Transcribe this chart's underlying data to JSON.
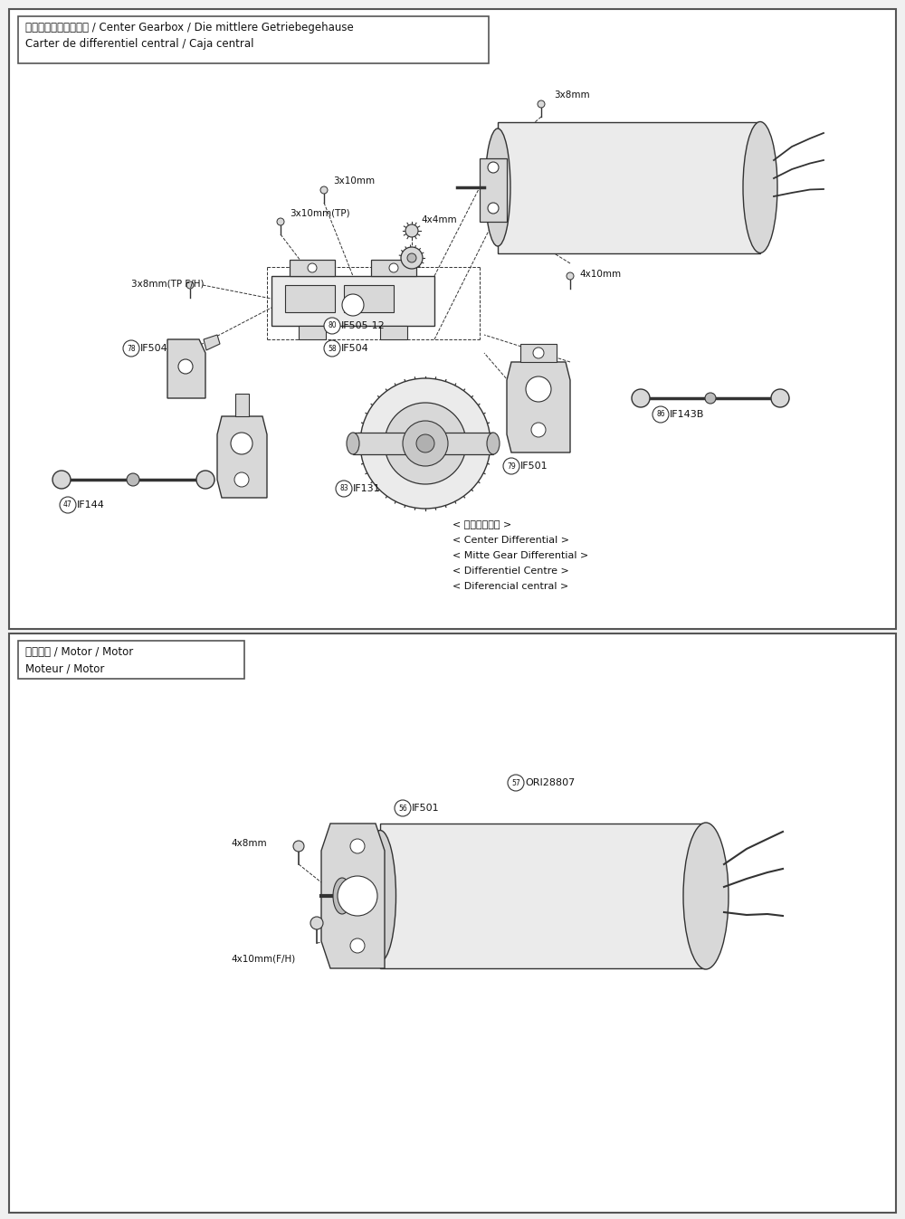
{
  "bg_color": "#f0f0f0",
  "panel_bg": "#ffffff",
  "border_color": "#555555",
  "line_color": "#333333",
  "text_color": "#111111",
  "gray_fill": "#d8d8d8",
  "light_gray": "#ebebeb",
  "panel1": {
    "title_line1": "センターギヤボックス / Center Gearbox / Die mittlere Getriebegehause",
    "title_line2": "Carter de differentiel central / Caja central",
    "center_diff_text": [
      "< センターデフ >",
      "< Center Differential >",
      "< Mitte Gear Differential >",
      "< Differentiel Centre >",
      "< Diferencial central >"
    ]
  },
  "panel2": {
    "title_line1": "モーター / Motor / Motor",
    "title_line2": "Moteur / Motor"
  }
}
